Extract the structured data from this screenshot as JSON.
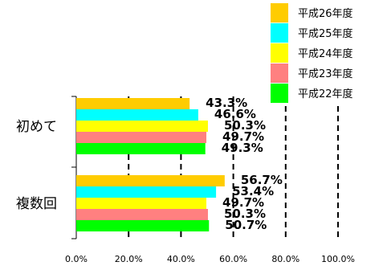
{
  "chart_data": {
    "type": "bar",
    "orientation": "horizontal",
    "categories": [
      "初めて",
      "複数回"
    ],
    "series": [
      {
        "name": "平成26年度",
        "color": "#FFCC00",
        "values": [
          43.3,
          56.7
        ],
        "labels": [
          "43.3%",
          "56.7%"
        ]
      },
      {
        "name": "平成25年度",
        "color": "#00FFFF",
        "values": [
          46.6,
          53.4
        ],
        "labels": [
          "46.6%",
          "53.4%"
        ]
      },
      {
        "name": "平成24年度",
        "color": "#FFFF00",
        "values": [
          50.3,
          49.7
        ],
        "labels": [
          "50.3%",
          "49.7%"
        ]
      },
      {
        "name": "平成23年度",
        "color": "#FF8080",
        "values": [
          49.7,
          50.3
        ],
        "labels": [
          "49.7%",
          "50.3%"
        ]
      },
      {
        "name": "平成22年度",
        "color": "#00FF00",
        "values": [
          49.3,
          50.7
        ],
        "labels": [
          "49.3%",
          "50.7%"
        ]
      }
    ],
    "xlim": [
      0,
      100
    ],
    "x_ticks": [
      "0.0%",
      "20.0%",
      "40.0%",
      "60.0%",
      "80.0%",
      "100.0%"
    ],
    "gridlines": "vertical dashed",
    "legend_position": "top-right",
    "data_labels": true
  }
}
